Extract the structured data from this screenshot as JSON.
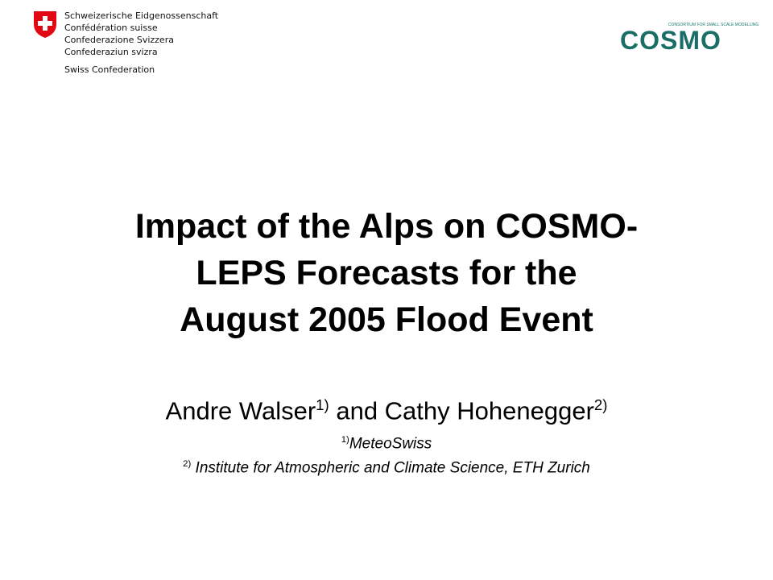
{
  "header": {
    "confederation_lines": [
      "Schweizerische Eidgenossenschaft",
      "Confédération suisse",
      "Confederazione Svizzera",
      "Confederaziun svizra"
    ],
    "swiss": "Swiss Confederation",
    "cosmo_tagline": "CONSORTIUM FOR SMALL SCALE MODELLING",
    "cosmo_logo": "COSMO"
  },
  "title_lines": [
    "Impact of the Alps on COSMO-",
    "LEPS Forecasts for the",
    "August 2005 Flood Event"
  ],
  "authors": {
    "name1": "Andre Walser",
    "sup1": "1)",
    "and": " and Cathy Hohenegger",
    "sup2": "2)"
  },
  "affiliations": [
    {
      "sup": "1)",
      "text": "MeteoSwiss"
    },
    {
      "sup": "2)",
      "text": " Institute for Atmospheric and Climate Science, ETH Zurich"
    }
  ]
}
